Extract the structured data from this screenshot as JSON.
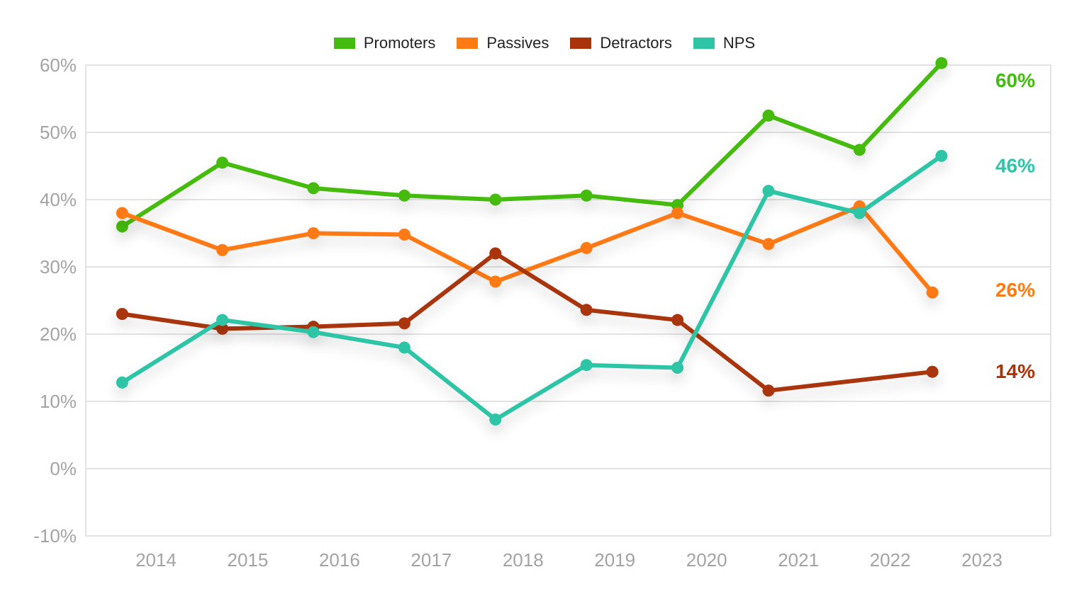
{
  "chart_data": {
    "type": "line",
    "title": "",
    "xlabel": "",
    "ylabel": "",
    "categories": [
      "2014",
      "2015",
      "2016",
      "2017",
      "2018",
      "2019",
      "2020",
      "2021",
      "2022",
      "2023"
    ],
    "ylim": [
      -10,
      60
    ],
    "yticks": [
      "60%",
      "50%",
      "40%",
      "30%",
      "20%",
      "10%",
      "0%",
      "-10%"
    ],
    "grid": true,
    "legend_position": "top-center",
    "series": [
      {
        "name": "Promoters",
        "color": "#44bb11",
        "x": [
          2013.7,
          2014.8,
          2015.8,
          2016.8,
          2017.8,
          2018.8,
          2019.8,
          2020.8,
          2021.8,
          2022.7
        ],
        "values": [
          36,
          45.5,
          41.7,
          40.6,
          40,
          40.6,
          39.2,
          52.5,
          47.4,
          60.3
        ],
        "end_label": "60%"
      },
      {
        "name": "Passives",
        "color": "#ff7a12",
        "x": [
          2013.7,
          2014.8,
          2015.8,
          2016.8,
          2017.8,
          2018.8,
          2019.8,
          2020.8,
          2021.8,
          2022.6
        ],
        "values": [
          38,
          32.5,
          35,
          34.8,
          27.8,
          32.8,
          38,
          33.4,
          39,
          26.2
        ],
        "end_label": "26%"
      },
      {
        "name": "Detractors",
        "color": "#a83408",
        "x": [
          2013.7,
          2014.8,
          2015.8,
          2016.8,
          2017.8,
          2018.8,
          2019.8,
          2020.8,
          2022.6
        ],
        "values": [
          23,
          20.8,
          21.1,
          21.6,
          32,
          23.6,
          22.1,
          11.6,
          14.4
        ],
        "end_label": "14%"
      },
      {
        "name": "NPS",
        "color": "#2ec4a6",
        "x": [
          2013.7,
          2014.8,
          2015.8,
          2016.8,
          2017.8,
          2018.8,
          2019.8,
          2020.8,
          2021.8,
          2022.7
        ],
        "values": [
          12.8,
          22.1,
          20.3,
          18,
          7.3,
          15.4,
          15,
          41.3,
          38,
          46.5
        ],
        "end_label": "46%"
      }
    ]
  }
}
